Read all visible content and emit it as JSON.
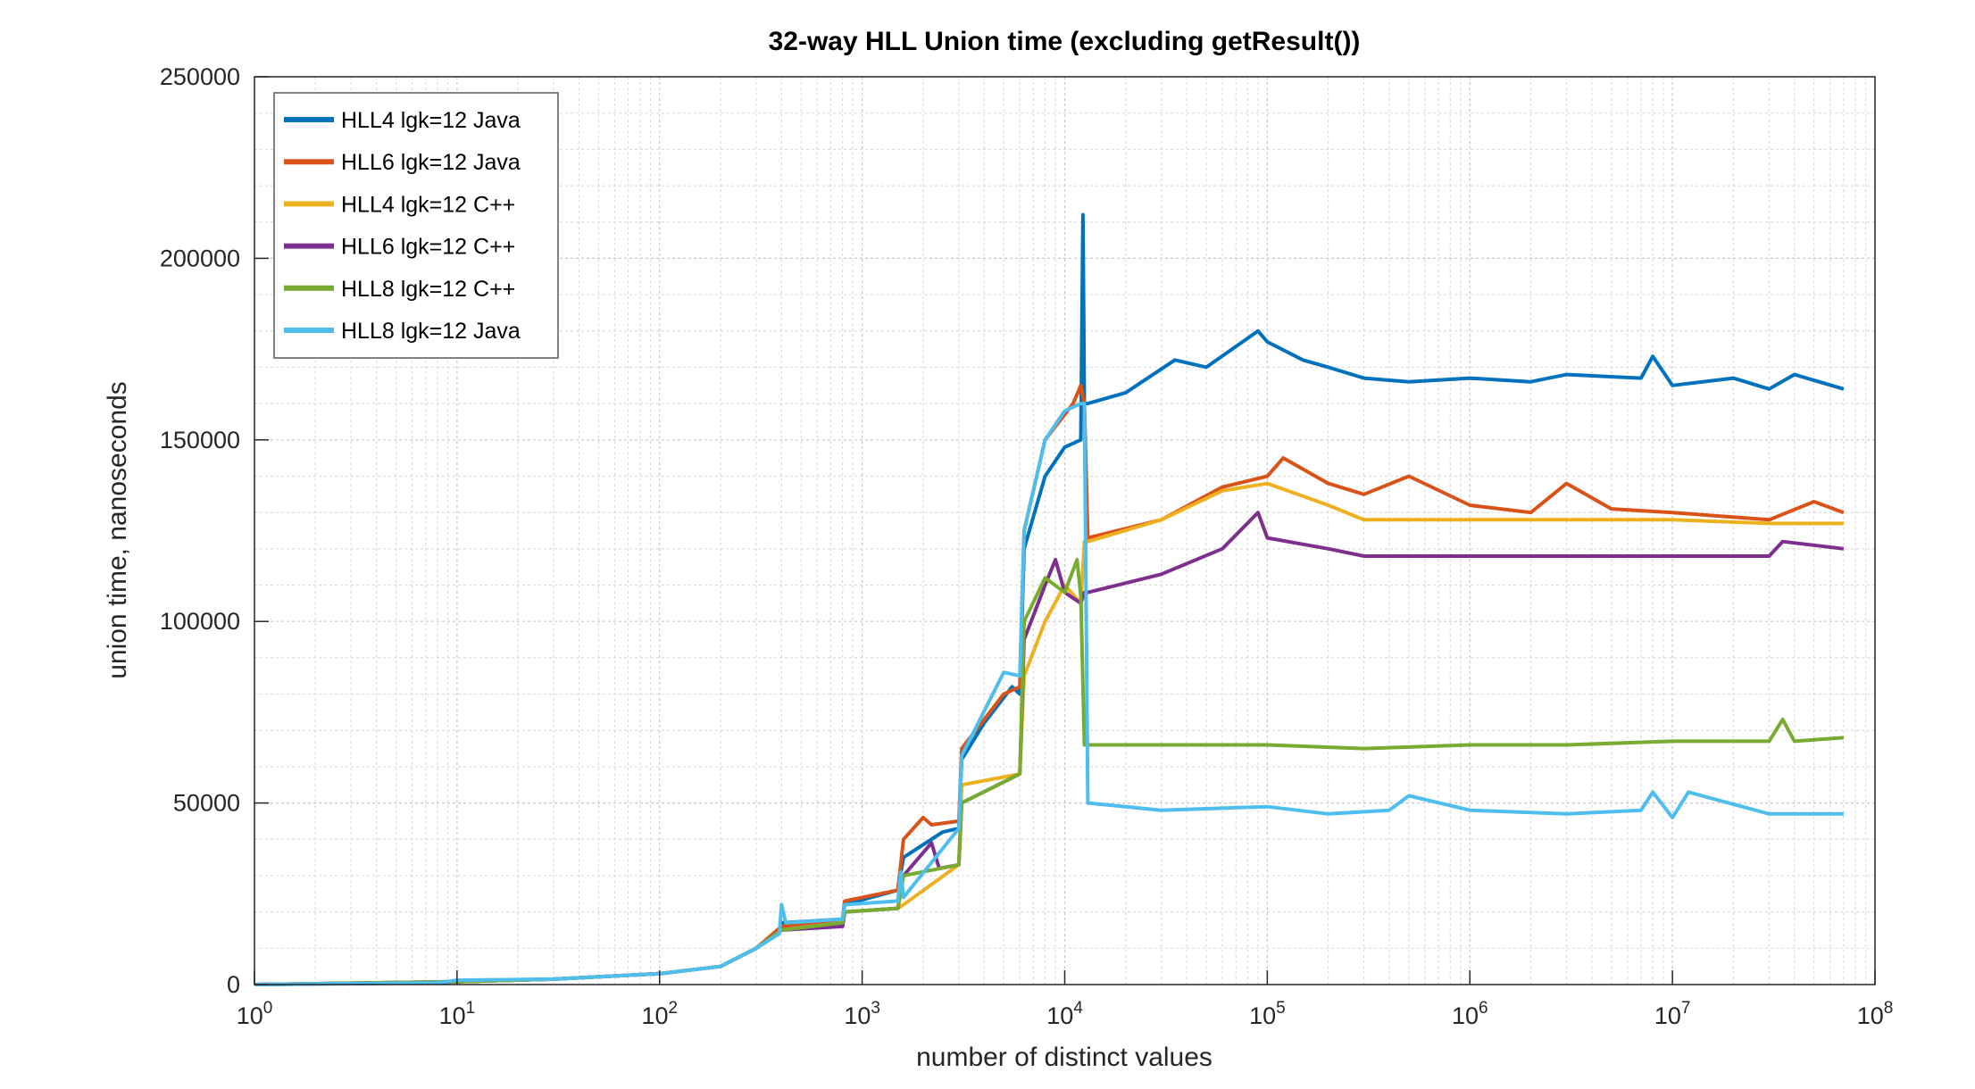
{
  "chart_data": {
    "type": "line",
    "title": "32-way HLL Union time (excluding getResult())",
    "xlabel": "number of distinct values",
    "ylabel": "union time, nanoseconds",
    "xscale": "log",
    "xlim": [
      1,
      100000000
    ],
    "ylim": [
      0,
      250000
    ],
    "grid": true,
    "minor_grid": true,
    "legend_position": "top-left",
    "x_ticks": [
      {
        "base": "10",
        "exp": "0"
      },
      {
        "base": "10",
        "exp": "1"
      },
      {
        "base": "10",
        "exp": "2"
      },
      {
        "base": "10",
        "exp": "3"
      },
      {
        "base": "10",
        "exp": "4"
      },
      {
        "base": "10",
        "exp": "5"
      },
      {
        "base": "10",
        "exp": "6"
      },
      {
        "base": "10",
        "exp": "7"
      },
      {
        "base": "10",
        "exp": "8"
      }
    ],
    "y_ticks": [
      "0",
      "50000",
      "100000",
      "150000",
      "200000",
      "250000"
    ],
    "series": [
      {
        "name": "HLL4 lgk=12 Java",
        "color": "#0072BD",
        "x": [
          1,
          8,
          10,
          30,
          100,
          200,
          300,
          390,
          400,
          800,
          820,
          1500,
          1600,
          2500,
          3000,
          3100,
          4000,
          5500,
          6000,
          6300,
          8000,
          10000,
          12000,
          12300,
          12500,
          13000,
          20000,
          35000,
          50000,
          90000,
          100000,
          150000,
          200000,
          300000,
          500000,
          1000000,
          2000000,
          3000000,
          7000000,
          8000000,
          10000000,
          20000000,
          30000000,
          40000000,
          70000000
        ],
        "y": [
          0,
          500,
          800,
          1500,
          3000,
          5000,
          10000,
          15000,
          17000,
          18000,
          22000,
          26000,
          35000,
          42000,
          43000,
          62000,
          72000,
          82000,
          80000,
          120000,
          140000,
          148000,
          150000,
          212000,
          160000,
          160000,
          163000,
          172000,
          170000,
          180000,
          177000,
          172000,
          170000,
          167000,
          166000,
          167000,
          166000,
          168000,
          167000,
          173000,
          165000,
          167000,
          164000,
          168000,
          164000
        ]
      },
      {
        "name": "HLL6 lgk=12 Java",
        "color": "#D95319",
        "x": [
          1,
          10,
          30,
          100,
          200,
          300,
          400,
          800,
          820,
          1500,
          1600,
          2000,
          2200,
          3000,
          3100,
          5000,
          6000,
          6300,
          8000,
          11000,
          12000,
          12500,
          13000,
          30000,
          60000,
          100000,
          120000,
          200000,
          300000,
          500000,
          1000000,
          2000000,
          3000000,
          5000000,
          10000000,
          30000000,
          50000000,
          70000000
        ],
        "y": [
          0,
          800,
          1500,
          3000,
          5000,
          10000,
          16000,
          18000,
          23000,
          26000,
          40000,
          46000,
          44000,
          45000,
          65000,
          80000,
          82000,
          125000,
          150000,
          160000,
          165000,
          160000,
          123000,
          128000,
          137000,
          140000,
          145000,
          138000,
          135000,
          140000,
          132000,
          130000,
          138000,
          131000,
          130000,
          128000,
          133000,
          130000
        ]
      },
      {
        "name": "HLL4 lgk=12 C++",
        "color": "#EDB120",
        "x": [
          1,
          10,
          30,
          100,
          200,
          300,
          400,
          800,
          820,
          1500,
          1600,
          3000,
          3100,
          6000,
          6300,
          8000,
          10000,
          12000,
          12500,
          13000,
          30000,
          60000,
          100000,
          200000,
          300000,
          1000000,
          3000000,
          10000000,
          30000000,
          70000000
        ],
        "y": [
          0,
          800,
          1500,
          3000,
          5000,
          10000,
          15000,
          17000,
          20000,
          21000,
          22000,
          33000,
          55000,
          58000,
          85000,
          100000,
          110000,
          105000,
          122000,
          122000,
          128000,
          136000,
          138000,
          132000,
          128000,
          128000,
          128000,
          128000,
          127000,
          127000
        ]
      },
      {
        "name": "HLL6 lgk=12 C++",
        "color": "#7E2F8E",
        "x": [
          1,
          10,
          30,
          100,
          200,
          300,
          400,
          800,
          820,
          1500,
          1600,
          2200,
          2400,
          3000,
          3100,
          6000,
          6300,
          8000,
          9000,
          10000,
          12000,
          12500,
          13000,
          30000,
          60000,
          90000,
          100000,
          200000,
          300000,
          1000000,
          3000000,
          10000000,
          30000000,
          35000000,
          70000000
        ],
        "y": [
          0,
          800,
          1500,
          3000,
          5000,
          10000,
          15000,
          16000,
          20000,
          21000,
          30000,
          39000,
          32000,
          33000,
          50000,
          58000,
          95000,
          110000,
          117000,
          108000,
          105000,
          108000,
          108000,
          113000,
          120000,
          130000,
          123000,
          120000,
          118000,
          118000,
          118000,
          118000,
          118000,
          122000,
          120000
        ]
      },
      {
        "name": "HLL8 lgk=12 C++",
        "color": "#77AC30",
        "x": [
          1,
          10,
          30,
          100,
          200,
          300,
          400,
          800,
          820,
          1500,
          1600,
          3000,
          3100,
          6000,
          6300,
          8000,
          10000,
          11500,
          12000,
          12500,
          13000,
          50000,
          100000,
          300000,
          1000000,
          3000000,
          10000000,
          30000000,
          35000000,
          40000000,
          70000000
        ],
        "y": [
          0,
          800,
          1500,
          3000,
          5000,
          10000,
          15000,
          17000,
          20000,
          21000,
          30000,
          33000,
          50000,
          58000,
          100000,
          112000,
          108000,
          117000,
          107000,
          66000,
          66000,
          66000,
          66000,
          65000,
          66000,
          66000,
          67000,
          67000,
          73000,
          67000,
          68000
        ]
      },
      {
        "name": "HLL8 lgk=12 Java",
        "color": "#4DBEEE",
        "x": [
          1,
          8,
          10,
          30,
          100,
          200,
          300,
          390,
          400,
          420,
          800,
          820,
          1500,
          1550,
          1600,
          3000,
          3100,
          5000,
          6000,
          6300,
          8000,
          10000,
          12000,
          12500,
          13000,
          30000,
          100000,
          200000,
          400000,
          500000,
          1000000,
          3000000,
          7000000,
          8000000,
          10000000,
          12000000,
          30000000,
          70000000
        ],
        "y": [
          0,
          500,
          1200,
          1500,
          3000,
          5000,
          10000,
          14000,
          22000,
          17000,
          18000,
          22000,
          23000,
          31000,
          24000,
          43000,
          63000,
          86000,
          85000,
          125000,
          150000,
          158000,
          160000,
          160000,
          50000,
          48000,
          49000,
          47000,
          48000,
          52000,
          48000,
          47000,
          48000,
          53000,
          46000,
          53000,
          47000,
          47000
        ]
      }
    ]
  }
}
